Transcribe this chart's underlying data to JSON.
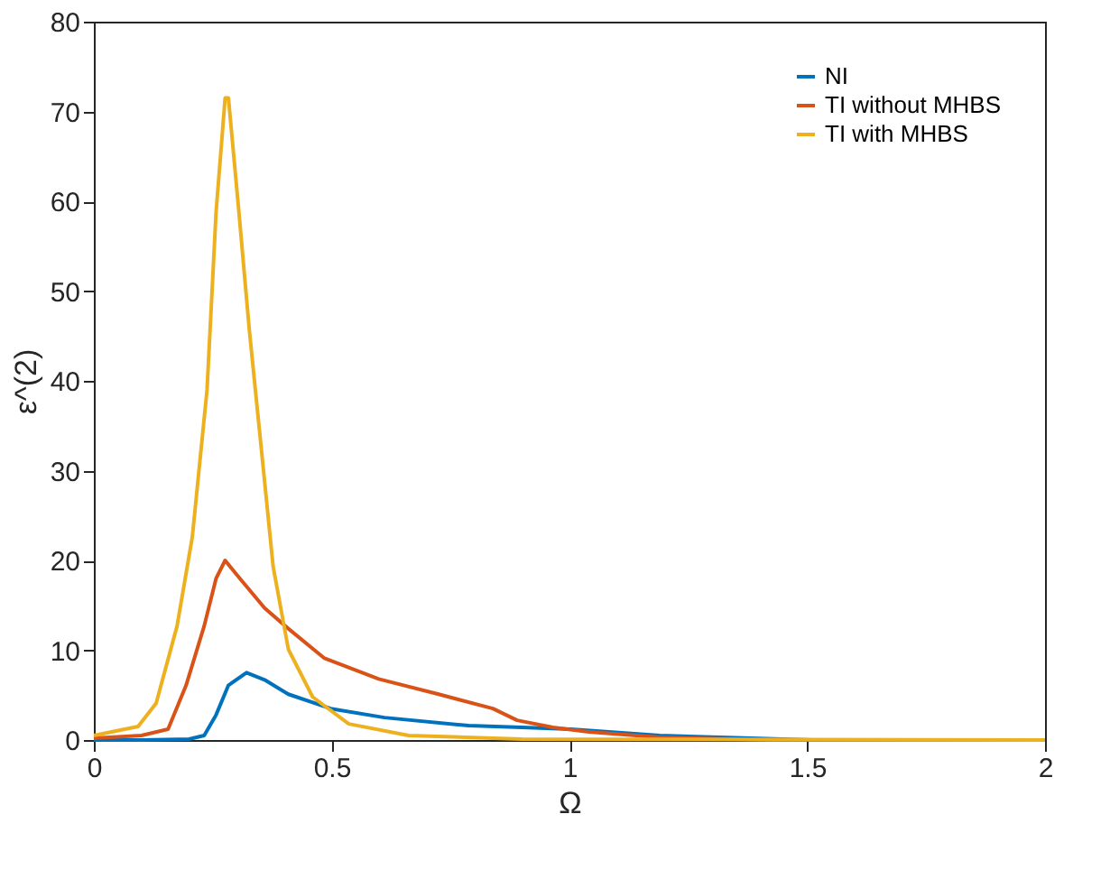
{
  "chart_data": {
    "type": "line",
    "xlabel": "Ω",
    "ylabel": "ε^(2)",
    "xlim": [
      0,
      2
    ],
    "ylim": [
      0,
      80
    ],
    "xticks": [
      0,
      0.5,
      1,
      1.5,
      2
    ],
    "yticks": [
      0,
      10,
      20,
      30,
      40,
      50,
      60,
      70,
      80
    ],
    "grid": false,
    "legend": "top right",
    "marker": "none",
    "line_style": "solid",
    "series": [
      {
        "name": "NI",
        "color": "#0072bd",
        "x": [
          0,
          0.1,
          0.2,
          0.232,
          0.257,
          0.283,
          0.321,
          0.359,
          0.409,
          0.498,
          0.611,
          0.788,
          0.9,
          1.003,
          1.19,
          1.383,
          1.51,
          2
        ],
        "values": [
          0,
          0,
          0.1,
          0.5,
          2.8,
          6.1,
          7.5,
          6.7,
          5.1,
          3.5,
          2.5,
          1.6,
          1.4,
          1.2,
          0.5,
          0.2,
          0,
          0
        ]
      },
      {
        "name": "TI without MHBS",
        "color": "#d95319",
        "x": [
          0,
          0.1,
          0.156,
          0.194,
          0.232,
          0.257,
          0.276,
          0.307,
          0.359,
          0.409,
          0.485,
          0.599,
          0.725,
          0.839,
          0.89,
          0.965,
          1.041,
          1.19,
          1.42,
          2
        ],
        "values": [
          0.2,
          0.5,
          1.2,
          6.1,
          12.7,
          18,
          20,
          18,
          14.7,
          12.4,
          9.1,
          6.8,
          5.1,
          3.5,
          2.2,
          1.4,
          0.9,
          0.3,
          0,
          0
        ]
      },
      {
        "name": "TI with MHBS",
        "color": "#edb120",
        "x": [
          0,
          0.093,
          0.131,
          0.175,
          0.207,
          0.238,
          0.257,
          0.276,
          0.283,
          0.305,
          0.327,
          0.352,
          0.377,
          0.409,
          0.46,
          0.536,
          0.662,
          0.9,
          2
        ],
        "values": [
          0.5,
          1.5,
          4.1,
          12.7,
          22.6,
          39,
          58.8,
          71.5,
          71.5,
          58.8,
          45.6,
          32.5,
          19.3,
          10.1,
          4.8,
          1.8,
          0.5,
          0.1,
          0
        ]
      }
    ]
  }
}
